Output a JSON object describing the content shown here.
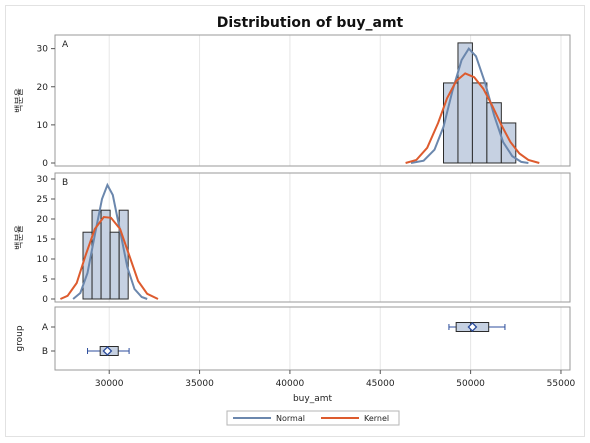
{
  "chart_data": {
    "type": "histogram",
    "title": "Distribution of buy_amt",
    "xlabel": "buy_amt",
    "ylabel_hist": "백분율",
    "ylabel_box": "group",
    "xlim": [
      27000,
      55500
    ],
    "xticks": [
      30000,
      35000,
      40000,
      45000,
      50000,
      55000
    ],
    "panels": [
      {
        "label": "A",
        "ylim": [
          0,
          32
        ],
        "yticks": [
          0,
          10,
          20,
          30
        ],
        "bins": [
          {
            "start": 48500,
            "end": 49300,
            "value": 21
          },
          {
            "start": 49300,
            "end": 50100,
            "value": 31.5
          },
          {
            "start": 50100,
            "end": 50900,
            "value": 21
          },
          {
            "start": 50900,
            "end": 51700,
            "value": 15.8
          },
          {
            "start": 51700,
            "end": 52500,
            "value": 10.5
          }
        ],
        "normal": [
          [
            46700,
            0
          ],
          [
            47400,
            0.6
          ],
          [
            48000,
            3.5
          ],
          [
            48500,
            9.5
          ],
          [
            49000,
            19
          ],
          [
            49500,
            27
          ],
          [
            49900,
            30
          ],
          [
            50300,
            28
          ],
          [
            50800,
            21
          ],
          [
            51300,
            12.5
          ],
          [
            51800,
            5.5
          ],
          [
            52300,
            1.8
          ],
          [
            52800,
            0.3
          ],
          [
            53200,
            0
          ]
        ],
        "kernel": [
          [
            46400,
            0
          ],
          [
            47000,
            0.8
          ],
          [
            47600,
            4
          ],
          [
            48200,
            10.5
          ],
          [
            48700,
            17
          ],
          [
            49200,
            21.5
          ],
          [
            49700,
            23.5
          ],
          [
            50200,
            22.5
          ],
          [
            50700,
            19.5
          ],
          [
            51200,
            15
          ],
          [
            51700,
            10
          ],
          [
            52200,
            5.5
          ],
          [
            52700,
            2.5
          ],
          [
            53200,
            0.8
          ],
          [
            53800,
            0
          ]
        ]
      },
      {
        "label": "B",
        "ylim": [
          0,
          30
        ],
        "yticks": [
          0,
          5,
          10,
          15,
          20,
          25,
          30
        ],
        "bins": [
          {
            "start": 28550,
            "end": 29050,
            "value": 16.7
          },
          {
            "start": 29050,
            "end": 29550,
            "value": 22.2
          },
          {
            "start": 29550,
            "end": 30050,
            "value": 22.2
          },
          {
            "start": 30050,
            "end": 30550,
            "value": 16.7
          },
          {
            "start": 30550,
            "end": 31050,
            "value": 22.2
          }
        ],
        "normal": [
          [
            28000,
            0
          ],
          [
            28400,
            1.5
          ],
          [
            28800,
            6.5
          ],
          [
            29200,
            16
          ],
          [
            29600,
            25
          ],
          [
            29900,
            28.5
          ],
          [
            30200,
            26
          ],
          [
            30600,
            17
          ],
          [
            31000,
            8
          ],
          [
            31400,
            2.5
          ],
          [
            31800,
            0.5
          ],
          [
            32100,
            0
          ]
        ],
        "kernel": [
          [
            27300,
            0
          ],
          [
            27700,
            0.8
          ],
          [
            28200,
            4
          ],
          [
            28700,
            11
          ],
          [
            29200,
            17.5
          ],
          [
            29700,
            20.5
          ],
          [
            30100,
            20.3
          ],
          [
            30600,
            17.5
          ],
          [
            31100,
            11
          ],
          [
            31600,
            4.5
          ],
          [
            32100,
            1.3
          ],
          [
            32700,
            0
          ]
        ]
      }
    ],
    "boxes": [
      {
        "group": "A",
        "whisker_low": 48800,
        "q1": 49200,
        "median": 50000,
        "mean": 50100,
        "q3": 51000,
        "whisker_high": 51900
      },
      {
        "group": "B",
        "whisker_low": 28800,
        "q1": 29500,
        "median": 29900,
        "mean": 29900,
        "q3": 30500,
        "whisker_high": 31100
      }
    ],
    "legend": [
      {
        "name": "Normal",
        "color": "#6b87ad"
      },
      {
        "name": "Kernel",
        "color": "#dd5b2e"
      }
    ],
    "legend_position": "bottom-center",
    "colors": {
      "bar_fill": "#c6d1e2",
      "bar_stroke": "#2b2b2b",
      "box_marker": "#2c4d9c",
      "grid": "#e6e6e6"
    }
  }
}
